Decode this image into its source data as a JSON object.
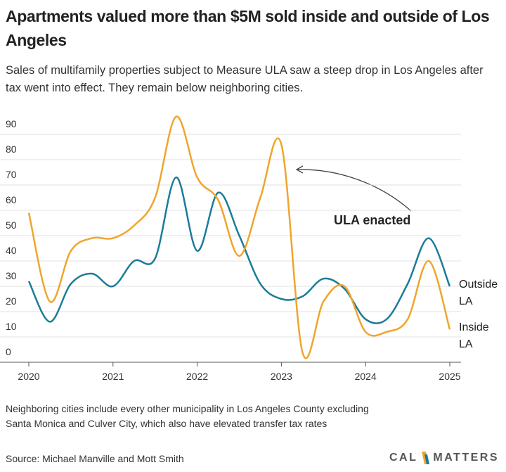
{
  "chart_data": {
    "type": "line",
    "title": "Apartments valued more than $5M sold inside and outside of Los Angeles",
    "subtitle": "Sales of multifamily properties subject to Measure ULA saw a steep drop in Los Angeles after tax went into effect. They remain below neighboring cities.",
    "x": [
      2020,
      2020.25,
      2020.5,
      2020.75,
      2021,
      2021.25,
      2021.5,
      2021.75,
      2022,
      2022.25,
      2022.5,
      2022.75,
      2023,
      2023.25,
      2023.5,
      2023.75,
      2024,
      2024.25,
      2024.5,
      2024.75,
      2025
    ],
    "series": [
      {
        "name": "Outside LA",
        "color": "#1b7c98",
        "values": [
          32,
          16,
          31,
          35,
          30,
          40,
          41,
          73,
          44,
          67,
          50,
          31,
          25,
          26,
          33,
          29,
          17,
          17,
          31,
          49,
          30
        ]
      },
      {
        "name": "Inside LA",
        "color": "#f0a52c",
        "values": [
          59,
          24,
          44,
          49,
          49,
          54,
          65,
          97,
          73,
          64,
          42,
          65,
          86,
          4,
          24,
          30,
          12,
          12,
          17,
          40,
          13
        ]
      }
    ],
    "xlim": [
      2020,
      2025
    ],
    "xticks": [
      2020,
      2021,
      2022,
      2023,
      2024,
      2025
    ],
    "ylim": [
      0,
      100
    ],
    "yticks": [
      0,
      10,
      20,
      30,
      40,
      50,
      60,
      70,
      80,
      90
    ],
    "grid": true,
    "annotation": "ULA enacted",
    "note": "Neighboring cities include every other municipality in Los Angeles County excluding Santa Monica and Culver City, which also have elevated transfer tax rates",
    "source": "Source: Michael Manville and Mott Smith",
    "logo": [
      "CAL",
      "MATTERS"
    ]
  }
}
